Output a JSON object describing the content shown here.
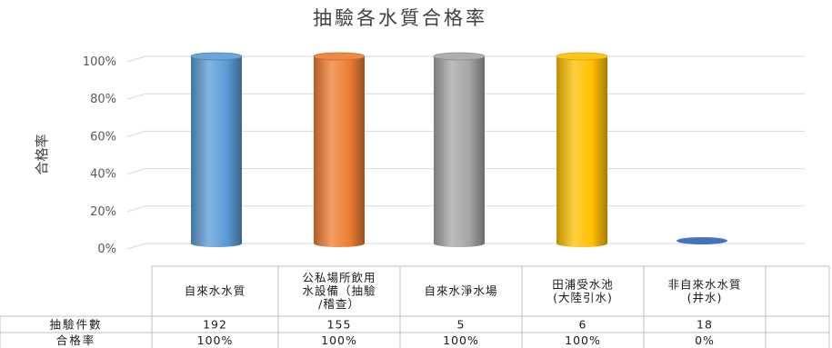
{
  "chart_data": {
    "type": "bar",
    "title": "抽驗各水質合格率",
    "ylabel": "合格率",
    "ylim": [
      0,
      1
    ],
    "y_ticks": [
      "0%",
      "20%",
      "40%",
      "60%",
      "80%",
      "100%"
    ],
    "y_tick_values": [
      0,
      0.2,
      0.4,
      0.6,
      0.8,
      1
    ],
    "grid": true,
    "categories": [
      [
        "自來水水質"
      ],
      [
        "公私場所飲用",
        "水設備（抽驗",
        "/稽查）"
      ],
      [
        "自來水淨水場"
      ],
      [
        "田浦受水池",
        "(大陸引水)"
      ],
      [
        "非自來水水質",
        "(井水)"
      ]
    ],
    "values": [
      1,
      1,
      1,
      1,
      0
    ],
    "bar_colors": [
      "#5b9bd5",
      "#ed7d31",
      "#a5a5a5",
      "#ffc000",
      "#4472c4"
    ],
    "table": {
      "rows": [
        {
          "header": "抽驗件數",
          "cells": [
            "192",
            "155",
            "5",
            "6",
            "18"
          ]
        },
        {
          "header": "合格率",
          "cells": [
            "100%",
            "100%",
            "100%",
            "100%",
            "0%"
          ]
        }
      ]
    }
  }
}
